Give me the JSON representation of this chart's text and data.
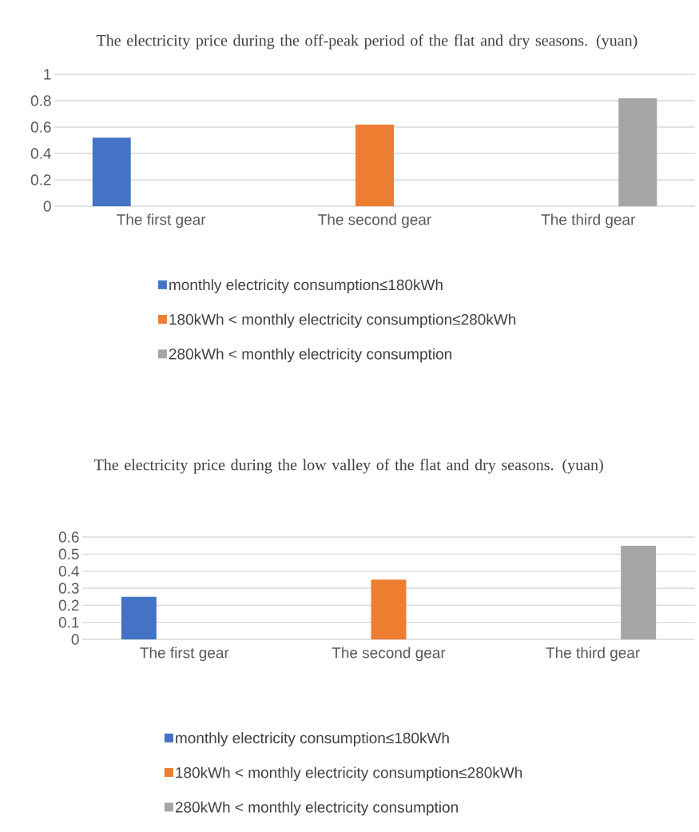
{
  "chart_data": [
    {
      "type": "bar",
      "title": "The electricity price during the off-peak period of the flat and dry seasons. (yuan)",
      "categories": [
        "The first gear",
        "The second gear",
        "The third gear"
      ],
      "series": [
        {
          "name": "monthly electricity consumption≤180kWh",
          "color": "#4472c4",
          "values": [
            0.52,
            null,
            null
          ]
        },
        {
          "name": "180kWh < monthly electricity consumption≤280kWh",
          "color": "#ed7d31",
          "values": [
            null,
            0.62,
            null
          ]
        },
        {
          "name": "280kWh < monthly electricity consumption",
          "color": "#a5a5a5",
          "values": [
            null,
            null,
            0.82
          ]
        }
      ],
      "ylim": [
        0,
        1
      ],
      "yticks": [
        0,
        0.2,
        0.4,
        0.6,
        0.8,
        1
      ],
      "grid": "y",
      "legend": "bottom"
    },
    {
      "type": "bar",
      "title": "The electricity price during the low valley of the flat and dry seasons. (yuan)",
      "categories": [
        "The first gear",
        "The second gear",
        "The third gear"
      ],
      "series": [
        {
          "name": "monthly electricity consumption≤180kWh",
          "color": "#4472c4",
          "values": [
            0.25,
            null,
            null
          ]
        },
        {
          "name": "180kWh < monthly electricity consumption≤280kWh",
          "color": "#ed7d31",
          "values": [
            null,
            0.35,
            null
          ]
        },
        {
          "name": "280kWh < monthly electricity consumption",
          "color": "#a5a5a5",
          "values": [
            null,
            null,
            0.55
          ]
        }
      ],
      "ylim": [
        0,
        0.6
      ],
      "yticks": [
        0,
        0.1,
        0.2,
        0.3,
        0.4,
        0.5,
        0.6
      ],
      "grid": "y",
      "legend": "bottom"
    }
  ]
}
